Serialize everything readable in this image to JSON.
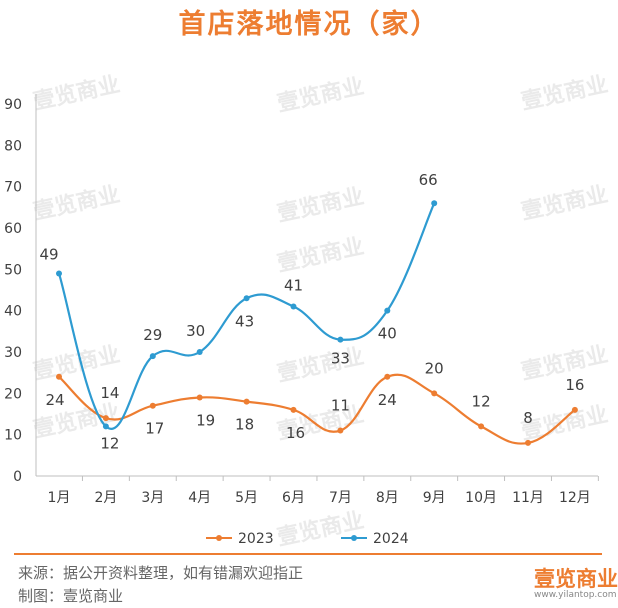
{
  "colors": {
    "series_2023": "#ED7D31",
    "series_2024": "#2E9BD1",
    "title": "#ED7D31",
    "axis": "#BFBFBF",
    "text": "#404040",
    "watermark": "#D9D9D9"
  },
  "chart_data": {
    "type": "line",
    "title": "首店落地情况（家）",
    "categories": [
      "1月",
      "2月",
      "3月",
      "4月",
      "5月",
      "6月",
      "7月",
      "8月",
      "9月",
      "10月",
      "11月",
      "12月"
    ],
    "series": [
      {
        "name": "2023",
        "values": [
          24,
          14,
          17,
          19,
          18,
          16,
          11,
          24,
          20,
          12,
          8,
          16
        ]
      },
      {
        "name": "2024",
        "values": [
          49,
          12,
          29,
          30,
          43,
          41,
          33,
          40,
          66,
          null,
          null,
          null
        ]
      }
    ],
    "ylim": [
      0,
      90
    ],
    "yticks": [
      0,
      10,
      20,
      30,
      40,
      50,
      60,
      70,
      80,
      90
    ],
    "grid": false,
    "legend_position": "bottom",
    "smooth": true,
    "data_labels": true
  },
  "watermark_text": "壹览商业",
  "footer": {
    "source": "来源：据公开资料整理，如有错漏欢迎指正",
    "producer": "制图：壹览商业",
    "logo_text": "壹览商业",
    "logo_url": "www.yilantop.com"
  }
}
